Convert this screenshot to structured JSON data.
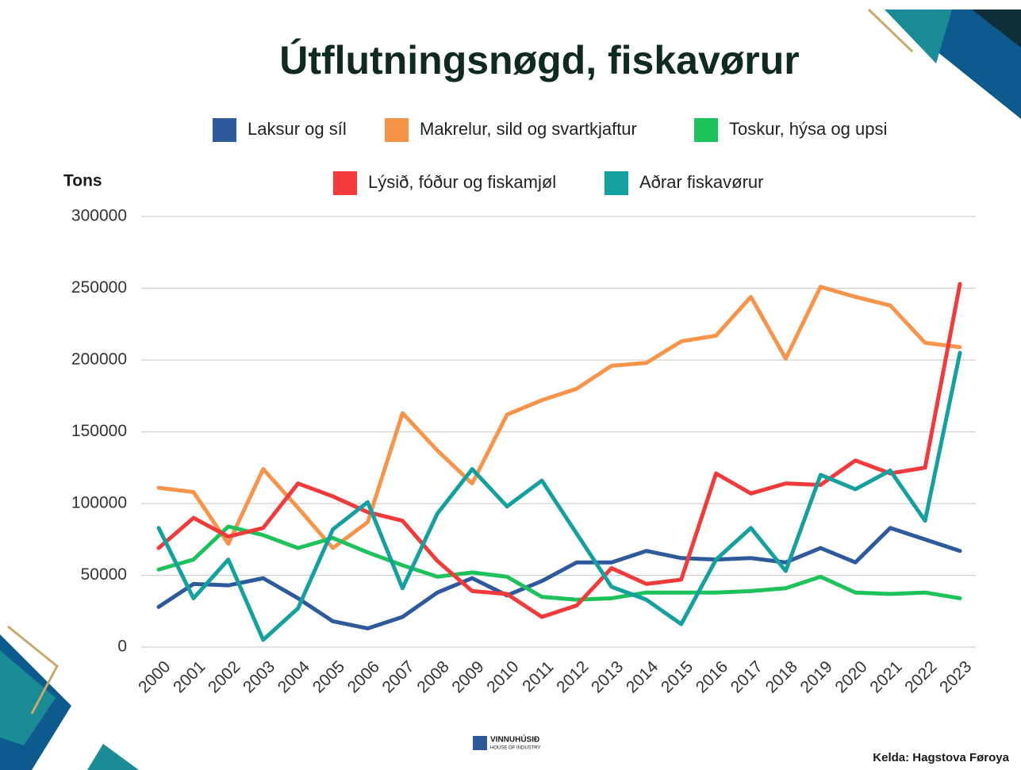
{
  "chart_data": {
    "type": "line",
    "title": "Útflutningsnøgd, fiskavørur",
    "y_label": "Tons",
    "x": [
      "2000",
      "2001",
      "2002",
      "2003",
      "2004",
      "2005",
      "2006",
      "2007",
      "2008",
      "2009",
      "2010",
      "2011",
      "2012",
      "2013",
      "2014",
      "2015",
      "2016",
      "2017",
      "2018",
      "2019",
      "2020",
      "2021",
      "2022",
      "2023"
    ],
    "series": [
      {
        "name": "Laksur og síl",
        "color": "#2e5a9c",
        "values": [
          28000,
          44000,
          43000,
          48000,
          34000,
          18000,
          13000,
          21000,
          38000,
          48000,
          36000,
          46000,
          59000,
          59000,
          67000,
          62000,
          61000,
          62000,
          59000,
          69000,
          59000,
          83000,
          75000,
          67000
        ]
      },
      {
        "name": "Makrelur, sild og svartkjaftur",
        "color": "#f7944a",
        "values": [
          111000,
          108000,
          72000,
          124000,
          97000,
          69000,
          87000,
          163000,
          137000,
          114000,
          162000,
          172000,
          180000,
          196000,
          198000,
          213000,
          217000,
          244000,
          201000,
          251000,
          244000,
          238000,
          212000,
          209000
        ]
      },
      {
        "name": "Toskur, hýsa og upsi",
        "color": "#1ec25a",
        "values": [
          54000,
          61000,
          84000,
          78000,
          69000,
          76000,
          66000,
          57000,
          49000,
          52000,
          49000,
          35000,
          33000,
          34000,
          38000,
          38000,
          38000,
          39000,
          41000,
          49000,
          38000,
          37000,
          38000,
          34000
        ]
      },
      {
        "name": "Lýsið, fóður og fiskamjøl",
        "color": "#f23a3a",
        "values": [
          69000,
          90000,
          77000,
          83000,
          114000,
          105000,
          94000,
          88000,
          60000,
          39000,
          37000,
          21000,
          29000,
          55000,
          44000,
          47000,
          121000,
          107000,
          114000,
          113000,
          130000,
          121000,
          125000,
          253000
        ]
      },
      {
        "name": "Aðrar fiskavørur",
        "color": "#15a0a0",
        "values": [
          83000,
          34000,
          61000,
          5000,
          27000,
          82000,
          101000,
          41000,
          93000,
          124000,
          98000,
          116000,
          79000,
          42000,
          33000,
          16000,
          61000,
          83000,
          53000,
          120000,
          110000,
          123000,
          88000,
          205000
        ]
      }
    ],
    "ylim": [
      0,
      300000
    ],
    "yticks": [
      0,
      50000,
      100000,
      150000,
      200000,
      250000,
      300000
    ],
    "grid": true,
    "logo": {
      "name": "VINNUHÚSIÐ",
      "tagline": "HOUSE OF INDUSTRY"
    },
    "source": "Kelda: Hagstova Føroya"
  }
}
